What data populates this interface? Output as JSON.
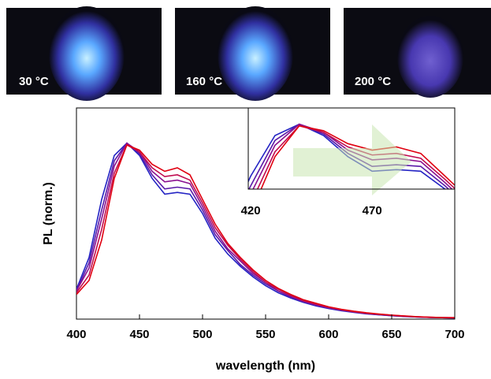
{
  "photos": [
    {
      "label": "30 °C"
    },
    {
      "label": "160 °C"
    },
    {
      "label": "200 °C"
    }
  ],
  "chart_data": {
    "type": "line",
    "xlabel": "wavelength (nm)",
    "ylabel": "PL (norm.)",
    "x": [
      400,
      410,
      420,
      430,
      440,
      450,
      460,
      470,
      480,
      490,
      500,
      510,
      520,
      530,
      540,
      550,
      560,
      570,
      580,
      590,
      600,
      610,
      620,
      630,
      640,
      650,
      660,
      670,
      680,
      690,
      700
    ],
    "xlim": [
      400,
      700
    ],
    "xticks": [
      400,
      450,
      500,
      550,
      600,
      650,
      700
    ],
    "ylim": [
      0,
      1.2
    ],
    "series": [
      {
        "color": "#2424c4",
        "values": [
          0.17,
          0.35,
          0.68,
          0.93,
          1.0,
          0.93,
          0.8,
          0.71,
          0.72,
          0.71,
          0.6,
          0.46,
          0.37,
          0.3,
          0.24,
          0.19,
          0.15,
          0.12,
          0.095,
          0.075,
          0.06,
          0.048,
          0.038,
          0.03,
          0.024,
          0.019,
          0.015,
          0.012,
          0.01,
          0.008,
          0.007
        ]
      },
      {
        "color": "#5a1aa8",
        "values": [
          0.16,
          0.32,
          0.62,
          0.9,
          1.0,
          0.94,
          0.82,
          0.74,
          0.75,
          0.74,
          0.62,
          0.48,
          0.39,
          0.31,
          0.25,
          0.2,
          0.16,
          0.125,
          0.1,
          0.08,
          0.062,
          0.05,
          0.04,
          0.031,
          0.025,
          0.02,
          0.016,
          0.012,
          0.01,
          0.008,
          0.007
        ]
      },
      {
        "color": "#8a1090",
        "values": [
          0.16,
          0.29,
          0.57,
          0.87,
          1.0,
          0.95,
          0.84,
          0.78,
          0.79,
          0.77,
          0.64,
          0.5,
          0.4,
          0.33,
          0.26,
          0.21,
          0.16,
          0.13,
          0.1,
          0.08,
          0.065,
          0.052,
          0.041,
          0.033,
          0.026,
          0.021,
          0.016,
          0.013,
          0.01,
          0.008,
          0.007
        ]
      },
      {
        "color": "#c00c50",
        "values": [
          0.15,
          0.25,
          0.51,
          0.83,
          0.99,
          0.95,
          0.86,
          0.81,
          0.82,
          0.79,
          0.66,
          0.52,
          0.42,
          0.34,
          0.27,
          0.21,
          0.17,
          0.135,
          0.105,
          0.085,
          0.068,
          0.054,
          0.043,
          0.034,
          0.028,
          0.022,
          0.017,
          0.013,
          0.011,
          0.009,
          0.008
        ]
      },
      {
        "color": "#e00010",
        "values": [
          0.14,
          0.22,
          0.45,
          0.8,
          0.99,
          0.96,
          0.88,
          0.84,
          0.86,
          0.82,
          0.68,
          0.54,
          0.43,
          0.35,
          0.28,
          0.22,
          0.175,
          0.14,
          0.11,
          0.09,
          0.07,
          0.056,
          0.045,
          0.036,
          0.029,
          0.023,
          0.018,
          0.014,
          0.011,
          0.009,
          0.008
        ]
      }
    ],
    "inset": {
      "xlim": [
        419,
        504
      ],
      "ylim": [
        0.6,
        1.1
      ],
      "xticks": [
        420,
        470
      ]
    }
  }
}
